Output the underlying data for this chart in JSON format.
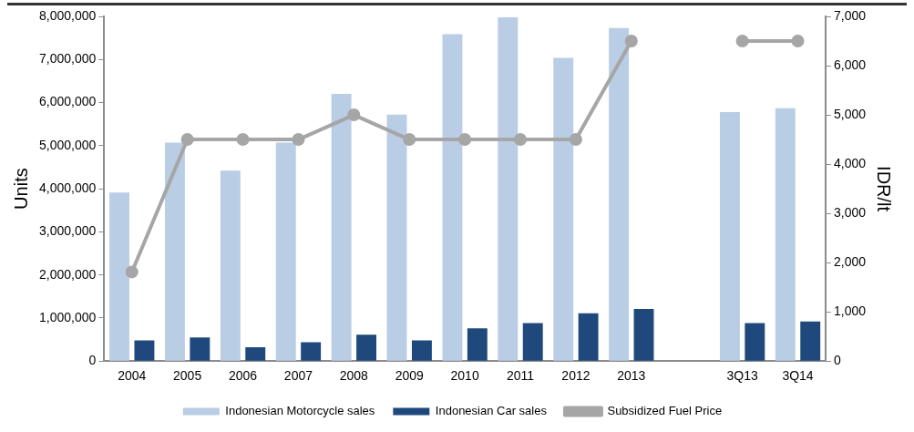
{
  "chart_data": {
    "type": "bar",
    "ylabel": "Units",
    "y2label": "IDR/lt",
    "categories": [
      "2004",
      "2005",
      "2006",
      "2007",
      "2008",
      "2009",
      "2010",
      "2011",
      "2012",
      "2013",
      null,
      "3Q13",
      "3Q14"
    ],
    "series": [
      {
        "name": "Indonesian Motorcycle sales",
        "color": "#b9cde5",
        "values": [
          3910000,
          5070000,
          4420000,
          5070000,
          6200000,
          5720000,
          7590000,
          7980000,
          7040000,
          7730000,
          null,
          5780000,
          5870000
        ]
      },
      {
        "name": "Indonesian Car sales",
        "color": "#1f497d",
        "values": [
          480000,
          550000,
          320000,
          440000,
          610000,
          480000,
          760000,
          880000,
          1110000,
          1210000,
          null,
          880000,
          920000
        ]
      },
      {
        "name": "Subsidized Fuel Price",
        "type": "line",
        "axis": "y2",
        "color": "#a6a6a6",
        "marker": "circle",
        "values": [
          1810,
          4500,
          4500,
          4500,
          5000,
          4500,
          4500,
          4500,
          4500,
          6500,
          null,
          6500,
          6500
        ]
      }
    ],
    "ylim": [
      0,
      8000000
    ],
    "yticks": [
      0,
      {
        "value": 1000000,
        "label": "1,000,000"
      },
      {
        "value": 2000000,
        "label": "2,000,000"
      },
      {
        "value": 3000000,
        "label": "3,000,000"
      },
      {
        "value": 4000000,
        "label": "4,000,000"
      },
      {
        "value": 5000000,
        "label": "5,000,000"
      },
      {
        "value": 6000000,
        "label": "6,000,000"
      },
      {
        "value": 7000000,
        "label": "7,000,000"
      },
      {
        "value": 8000000,
        "label": "8,000,000"
      }
    ],
    "y2lim": [
      0,
      7000
    ],
    "y2ticks": [
      0,
      {
        "value": 1000,
        "label": "1,000"
      },
      {
        "value": 2000,
        "label": "2,000"
      },
      {
        "value": 3000,
        "label": "3,000"
      },
      {
        "value": 4000,
        "label": "4,000"
      },
      {
        "value": 5000,
        "label": "5,000"
      },
      {
        "value": 6000,
        "label": "6,000"
      },
      {
        "value": 7000,
        "label": "7,000"
      }
    ],
    "grid": false,
    "legend": "bottom"
  }
}
